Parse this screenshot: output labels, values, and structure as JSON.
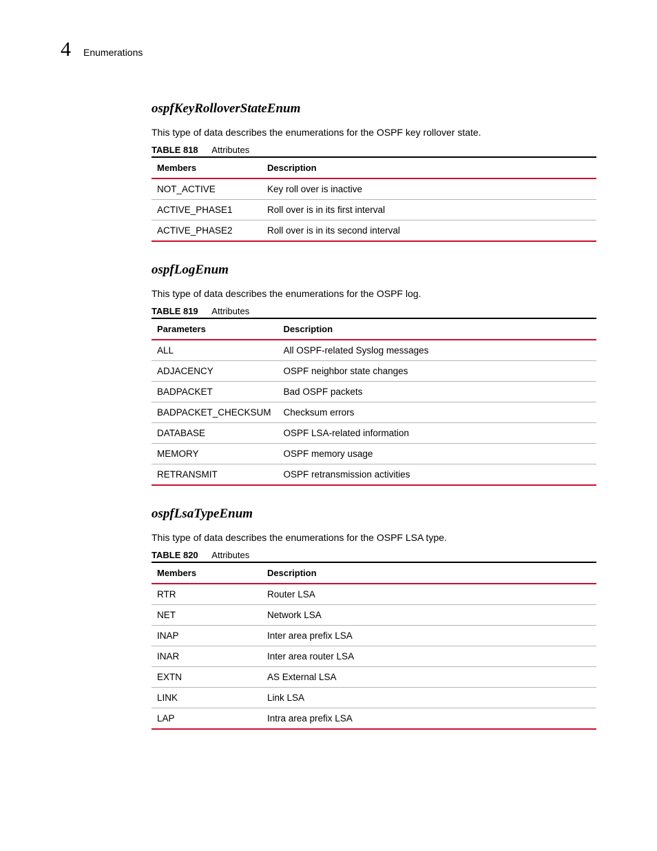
{
  "header": {
    "chapter_number": "4",
    "chapter_title": "Enumerations"
  },
  "colors": {
    "accent_red": "#c8102e",
    "rule_black": "#000000",
    "row_rule": "#b5b5b5",
    "text": "#000000",
    "background": "#ffffff"
  },
  "sections": [
    {
      "heading": "ospfKeyRolloverStateEnum",
      "intro": "This type of data describes the enumerations for the OSPF key rollover state.",
      "table": {
        "label": "TABLE 818",
        "title": "Attributes",
        "headers": [
          "Members",
          "Description"
        ],
        "rows": [
          [
            "NOT_ACTIVE",
            "Key roll over is inactive"
          ],
          [
            "ACTIVE_PHASE1",
            "Roll over is in its first interval"
          ],
          [
            "ACTIVE_PHASE2",
            "Roll over is in its second interval"
          ]
        ]
      }
    },
    {
      "heading": "ospfLogEnum",
      "intro": "This type of data describes the enumerations for the OSPF log.",
      "table": {
        "label": "TABLE 819",
        "title": "Attributes",
        "headers": [
          "Parameters",
          "Description"
        ],
        "rows": [
          [
            "ALL",
            "All OSPF-related Syslog messages"
          ],
          [
            "ADJACENCY",
            "OSPF neighbor state changes"
          ],
          [
            "BADPACKET",
            "Bad OSPF packets"
          ],
          [
            "BADPACKET_CHECKSUM",
            "Checksum errors"
          ],
          [
            "DATABASE",
            "OSPF LSA-related information"
          ],
          [
            "MEMORY",
            "OSPF memory usage"
          ],
          [
            "RETRANSMIT",
            "OSPF retransmission activities"
          ]
        ]
      }
    },
    {
      "heading": "ospfLsaTypeEnum",
      "intro": "This type of data describes the enumerations for the OSPF LSA type.",
      "table": {
        "label": "TABLE 820",
        "title": "Attributes",
        "headers": [
          "Members",
          "Description"
        ],
        "rows": [
          [
            "RTR",
            "Router LSA"
          ],
          [
            "NET",
            "Network LSA"
          ],
          [
            "INAP",
            "Inter area prefix LSA"
          ],
          [
            "INAR",
            "Inter area router LSA"
          ],
          [
            "EXTN",
            "AS External LSA"
          ],
          [
            "LINK",
            "Link LSA"
          ],
          [
            "LAP",
            "Intra area prefix LSA"
          ]
        ]
      }
    }
  ]
}
